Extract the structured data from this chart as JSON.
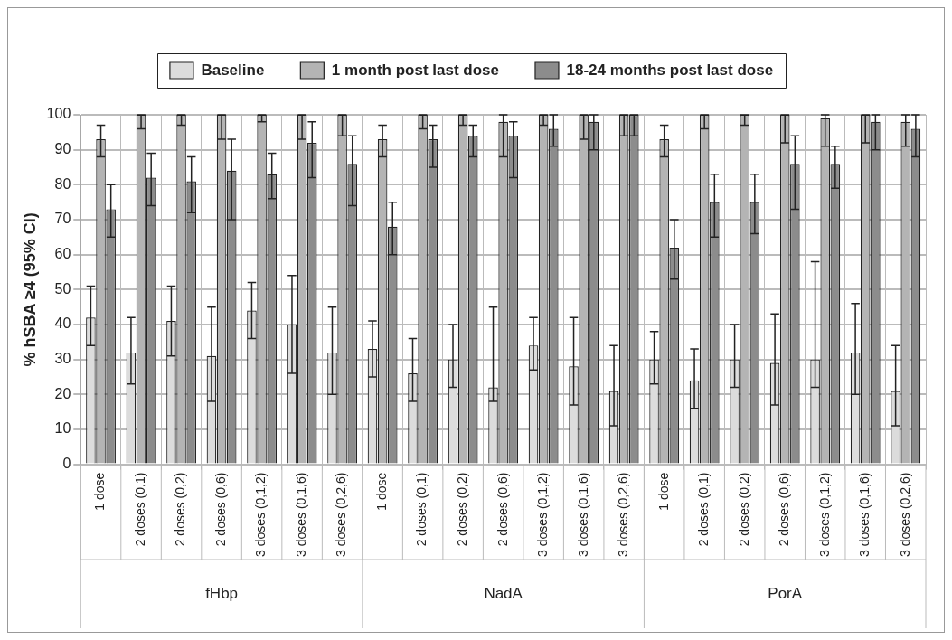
{
  "chart_data": {
    "type": "bar",
    "ylabel": "% hSBA ≥4 (95% CI)",
    "categories": [
      "1 dose",
      "2 doses (0,1)",
      "2 doses (0,2)",
      "2 doses (0,6)",
      "3 doses (0,1,2)",
      "3 doses (0,1,6)",
      "3 doses (0,2,6)",
      "1 dose",
      "2 doses (0,1)",
      "2 doses (0,2)",
      "2 doses (0,6)",
      "3 doses (0,1,2)",
      "3 doses (0,1,6)",
      "3 doses (0,2,6)",
      "1 dose",
      "2 doses (0,1)",
      "2 doses (0,2)",
      "2 doses (0,6)",
      "3 doses (0,1,2)",
      "3 doses (0,1,6)",
      "3 doses (0,2,6)"
    ],
    "annotations": [
      "fHbp",
      "NadA",
      "PorA"
    ],
    "series": [
      {
        "name": "Baseline",
        "color": "#dcdcdc",
        "values": [
          42,
          32,
          41,
          31,
          44,
          40,
          32,
          33,
          26,
          30,
          22,
          34,
          28,
          21,
          30,
          24,
          30,
          29,
          30,
          32,
          21
        ],
        "errors": [
          [
            34,
            51
          ],
          [
            23,
            42
          ],
          [
            31,
            51
          ],
          [
            18,
            45
          ],
          [
            36,
            52
          ],
          [
            26,
            54
          ],
          [
            20,
            45
          ],
          [
            25,
            41
          ],
          [
            18,
            36
          ],
          [
            22,
            40
          ],
          [
            18,
            45
          ],
          [
            27,
            42
          ],
          [
            17,
            42
          ],
          [
            11,
            34
          ],
          [
            23,
            38
          ],
          [
            16,
            33
          ],
          [
            22,
            40
          ],
          [
            17,
            43
          ],
          [
            22,
            58
          ],
          [
            20,
            46
          ],
          [
            11,
            34
          ]
        ]
      },
      {
        "name": "1 month post last dose",
        "color": "#b4b4b4",
        "values": [
          93,
          100,
          100,
          100,
          100,
          100,
          100,
          93,
          100,
          100,
          98,
          100,
          100,
          100,
          93,
          100,
          100,
          100,
          99,
          100,
          98
        ],
        "errors": [
          [
            88,
            97
          ],
          [
            96,
            100
          ],
          [
            97,
            100
          ],
          [
            93,
            100
          ],
          [
            98,
            100
          ],
          [
            93,
            100
          ],
          [
            94,
            100
          ],
          [
            88,
            97
          ],
          [
            96,
            100
          ],
          [
            97,
            100
          ],
          [
            88,
            100
          ],
          [
            97,
            100
          ],
          [
            93,
            100
          ],
          [
            94,
            100
          ],
          [
            88,
            97
          ],
          [
            96,
            100
          ],
          [
            97,
            100
          ],
          [
            92,
            100
          ],
          [
            91,
            100
          ],
          [
            92,
            100
          ],
          [
            91,
            100
          ]
        ]
      },
      {
        "name": "18-24 months post last dose",
        "color": "#8c8c8c",
        "values": [
          73,
          82,
          81,
          84,
          83,
          92,
          86,
          68,
          93,
          94,
          94,
          96,
          98,
          100,
          62,
          75,
          75,
          86,
          86,
          98,
          96
        ],
        "errors": [
          [
            65,
            80
          ],
          [
            74,
            89
          ],
          [
            72,
            88
          ],
          [
            70,
            93
          ],
          [
            76,
            89
          ],
          [
            82,
            98
          ],
          [
            74,
            94
          ],
          [
            60,
            75
          ],
          [
            85,
            97
          ],
          [
            88,
            97
          ],
          [
            82,
            98
          ],
          [
            91,
            100
          ],
          [
            90,
            100
          ],
          [
            94,
            100
          ],
          [
            53,
            70
          ],
          [
            65,
            83
          ],
          [
            66,
            83
          ],
          [
            73,
            94
          ],
          [
            79,
            91
          ],
          [
            90,
            100
          ],
          [
            88,
            100
          ]
        ]
      }
    ],
    "ylim": [
      0,
      100
    ],
    "yticks": [
      0,
      10,
      20,
      30,
      40,
      50,
      60,
      70,
      80,
      90,
      100
    ],
    "grid": true,
    "legend": "top"
  }
}
